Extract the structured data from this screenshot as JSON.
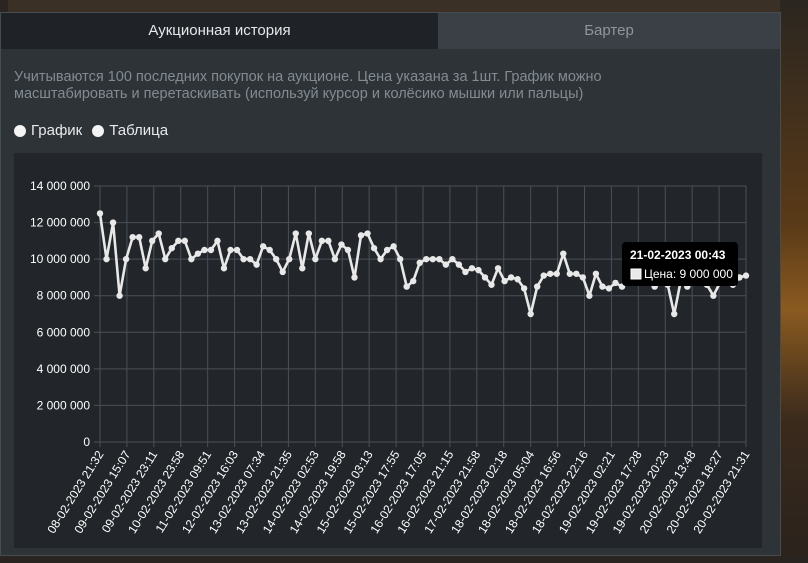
{
  "tabs": [
    {
      "label": "Аукционная история",
      "active": true
    },
    {
      "label": "Бартер",
      "active": false
    }
  ],
  "note": "Учитываются 100 последних покупок на аукционе. Цена указана за 1шт. График можно масштабировать и перетаскивать (используй курсор и колёсико мышки или пальцы)",
  "view_options": [
    {
      "label": "График",
      "selected": true
    },
    {
      "label": "Таблица",
      "selected": false
    }
  ],
  "tooltip": {
    "title": "21-02-2023 00:43",
    "label": "Цена: 9 000 000"
  },
  "colors": {
    "line": "#e8e8e8",
    "panel": "#2e3338",
    "chart_bg": "#22262a",
    "tab_active": "#1f2327"
  },
  "chart_data": {
    "type": "line",
    "x_tick_labels": [
      "08-02-2023 21:32",
      "09-02-2023 15:07",
      "09-02-2023 23:11",
      "10-02-2023 23:58",
      "11-02-2023 09:51",
      "12-02-2023 16:03",
      "13-02-2023 07:34",
      "13-02-2023 21:35",
      "14-02-2023 02:53",
      "14-02-2023 19:58",
      "15-02-2023 03:13",
      "15-02-2023 17:55",
      "16-02-2023 17:05",
      "16-02-2023 21:15",
      "17-02-2023 21:58",
      "18-02-2023 02:18",
      "18-02-2023 05:04",
      "18-02-2023 16:56",
      "18-02-2023 22:16",
      "19-02-2023 02:21",
      "19-02-2023 17:28",
      "19-02-2023 20:23",
      "20-02-2023 13:48",
      "20-02-2023 18:27",
      "20-02-2023 21:31"
    ],
    "y_tick_labels": [
      "0",
      "2 000 000",
      "4 000 000",
      "6 000 000",
      "8 000 000",
      "10 000 000",
      "12 000 000",
      "14 000 000"
    ],
    "ylim": [
      0,
      14000000
    ],
    "grid": true,
    "values": [
      12500000,
      10000000,
      12000000,
      8000000,
      10000000,
      11200000,
      11200000,
      9500000,
      11000000,
      11400000,
      10000000,
      10600000,
      11000000,
      11000000,
      10000000,
      10300000,
      10500000,
      10500000,
      11000000,
      9500000,
      10500000,
      10500000,
      10000000,
      10000000,
      9700000,
      10700000,
      10500000,
      10000000,
      9300000,
      10000000,
      11400000,
      9500000,
      11400000,
      10000000,
      11000000,
      11000000,
      10000000,
      10800000,
      10500000,
      9000000,
      11300000,
      11400000,
      10600000,
      10000000,
      10500000,
      10700000,
      10000000,
      8500000,
      8800000,
      9800000,
      10000000,
      10000000,
      10000000,
      9700000,
      10000000,
      9700000,
      9300000,
      9500000,
      9400000,
      9000000,
      8600000,
      9500000,
      8800000,
      9000000,
      8900000,
      8400000,
      7000000,
      8500000,
      9100000,
      9200000,
      9200000,
      10300000,
      9200000,
      9200000,
      9000000,
      8000000,
      9200000,
      8500000,
      8400000,
      8700000,
      8500000,
      9000000,
      8800000,
      9000000,
      9000000,
      8500000,
      8700000,
      8600000,
      7000000,
      8800000,
      8500000,
      8700000,
      9000000,
      8600000,
      8000000,
      8700000,
      9000000,
      8600000,
      9000000,
      9100000
    ]
  }
}
